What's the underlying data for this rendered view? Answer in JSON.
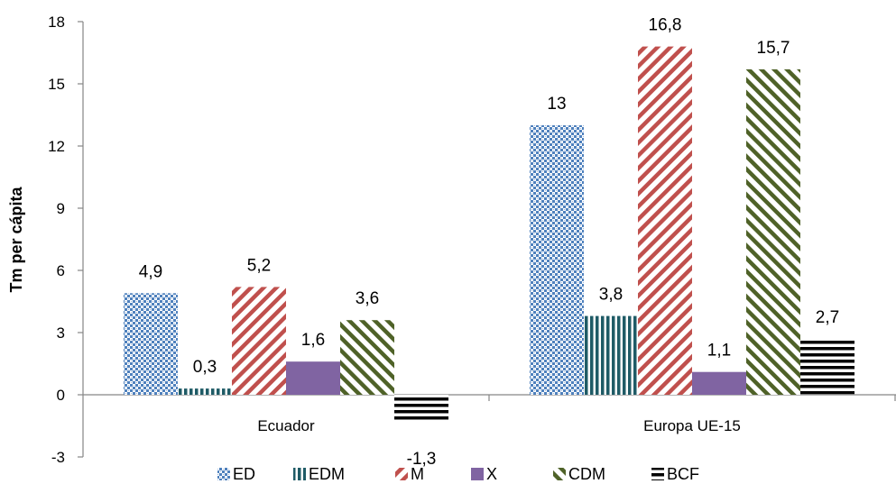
{
  "chart_data": {
    "type": "bar",
    "categories": [
      "Ecuador",
      "Europa UE-15"
    ],
    "series": [
      {
        "name": "ED",
        "values": [
          4.9,
          13
        ],
        "labels": [
          "4,9",
          "13"
        ],
        "pattern": "dots",
        "color": "#4f81bd"
      },
      {
        "name": "EDM",
        "values": [
          0.3,
          3.8
        ],
        "labels": [
          "0,3",
          "3,8"
        ],
        "pattern": "vertical",
        "color": "#1f5b66"
      },
      {
        "name": "M",
        "values": [
          5.2,
          16.8
        ],
        "labels": [
          "5,2",
          "16,8"
        ],
        "pattern": "diag-up",
        "color": "#c0504d"
      },
      {
        "name": "X",
        "values": [
          1.6,
          1.1
        ],
        "labels": [
          "1,6",
          "1,1"
        ],
        "pattern": "solid",
        "color": "#8064a2"
      },
      {
        "name": "CDM",
        "values": [
          3.6,
          15.7
        ],
        "labels": [
          "3,6",
          "15,7"
        ],
        "pattern": "diag-down",
        "color": "#4f6228"
      },
      {
        "name": "BCF",
        "values": [
          -1.3,
          2.7
        ],
        "labels": [
          "-1,3",
          "2,7"
        ],
        "pattern": "horizontal",
        "color": "#000000"
      }
    ],
    "xlabel": "",
    "ylabel": "Tm per cápita",
    "ylim": [
      -3,
      18
    ],
    "yticks": [
      -3,
      0,
      3,
      6,
      9,
      12,
      15,
      18
    ],
    "ytick_labels": [
      "-3",
      "0",
      "3",
      "6",
      "9",
      "12",
      "15",
      "18"
    ],
    "grid": false,
    "legend_position": "bottom"
  }
}
